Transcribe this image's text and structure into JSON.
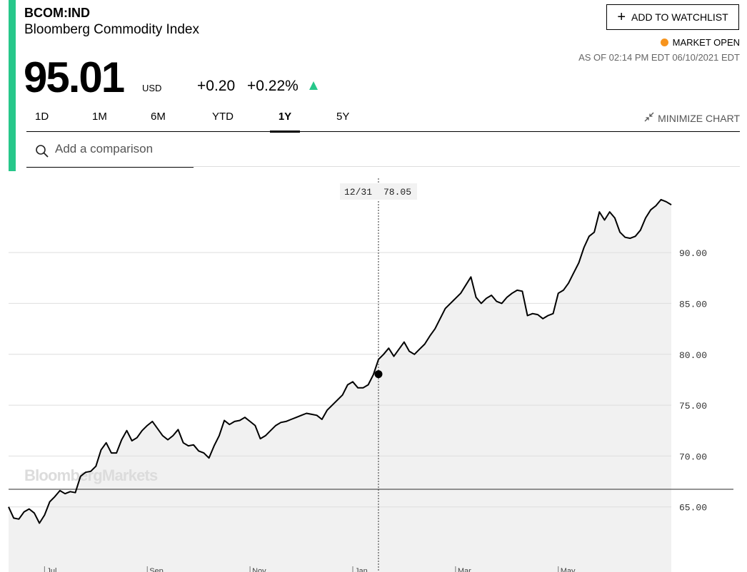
{
  "header": {
    "ticker": "BCOM:IND",
    "name": "Bloomberg Commodity Index",
    "price": "95.01",
    "currency": "USD",
    "change": "+0.20",
    "change_pct": "+0.22%",
    "watchlist_label": "ADD TO WATCHLIST",
    "market_status": "MARKET OPEN",
    "as_of": "AS OF 02:14 PM EDT 06/10/2021 EDT",
    "accent_color": "#27c78a",
    "status_color": "#f7941d"
  },
  "tabs": [
    {
      "label": "1D",
      "active": false
    },
    {
      "label": "1M",
      "active": false
    },
    {
      "label": "6M",
      "active": false
    },
    {
      "label": "YTD",
      "active": false
    },
    {
      "label": "1Y",
      "active": true
    },
    {
      "label": "5Y",
      "active": false
    }
  ],
  "minimize_label": "MINIMIZE CHART",
  "search": {
    "placeholder": "Add a comparison"
  },
  "watermark": "BloombergMarkets",
  "tooltip": {
    "date": "12/31",
    "value": "78.05"
  },
  "chart_data": {
    "type": "area",
    "title": "",
    "xlabel": "",
    "ylabel": "",
    "x_tick_labels": [
      "Jul",
      "Sep",
      "Nov",
      "Jan",
      "Mar",
      "May"
    ],
    "y_tick_labels": [
      "65.00",
      "70.00",
      "75.00",
      "80.00",
      "85.00",
      "90.00"
    ],
    "yticks": [
      65,
      70,
      75,
      80,
      85,
      90
    ],
    "ylim": [
      58.6,
      98
    ],
    "series": [
      {
        "values": [
          65.0,
          63.9,
          63.8,
          64.5,
          64.8,
          64.4,
          63.4,
          64.2,
          65.5,
          66.0,
          66.6,
          66.3,
          66.5,
          66.4,
          68.0,
          68.4,
          68.5,
          69.0,
          70.6,
          71.3,
          70.3,
          70.3,
          71.6,
          72.5,
          71.5,
          71.8,
          72.5,
          73.0,
          73.4,
          72.7,
          72.0,
          71.6,
          72.0,
          72.6,
          71.3,
          71.0,
          71.1,
          70.5,
          70.3,
          69.8,
          71.0,
          72.0,
          73.5,
          73.1,
          73.4,
          73.5,
          73.8,
          73.4,
          73.0,
          71.7,
          72.0,
          72.5,
          73.0,
          73.3,
          73.4,
          73.6,
          73.8,
          74.0,
          74.2,
          74.1,
          74.0,
          73.6,
          74.5,
          75.0,
          75.5,
          76.0,
          77.0,
          77.3,
          76.7,
          76.7,
          77.0,
          78.0,
          79.5,
          80.0,
          80.6,
          79.8,
          80.5,
          81.2,
          80.3,
          80.0,
          80.5,
          81.0,
          81.8,
          82.5,
          83.5,
          84.5,
          85.0,
          85.5,
          86.0,
          86.8,
          87.6,
          85.6,
          85.0,
          85.5,
          85.8,
          85.2,
          85.0,
          85.6,
          86.0,
          86.3,
          86.2,
          83.8,
          84.0,
          83.9,
          83.5,
          83.8,
          84.0,
          86.0,
          86.3,
          87.0,
          88.0,
          89.0,
          90.5,
          91.6,
          92.0,
          94.0,
          93.2,
          94.0,
          93.4,
          92.0,
          91.5,
          91.4,
          91.6,
          92.2,
          93.4,
          94.2,
          94.6,
          95.2,
          95.0,
          94.7
        ],
        "color": "#000000"
      }
    ],
    "highlight_point": {
      "date": "12/31",
      "value": 78.05
    },
    "baseline": 60.0,
    "grid": true,
    "fill_color": "#f1f1f1"
  }
}
